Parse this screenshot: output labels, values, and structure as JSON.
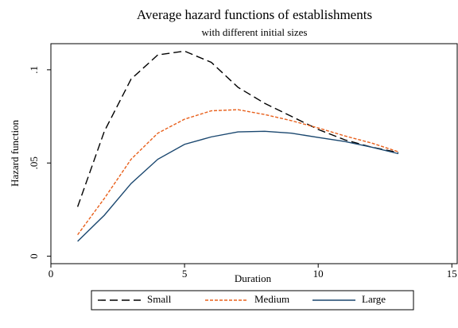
{
  "chart_data": {
    "type": "line",
    "title": "Average hazard functions of establishments",
    "subtitle": "with different initial sizes",
    "x_label": "Duration",
    "y_label": "Hazard function",
    "x": [
      1,
      2,
      3,
      4,
      5,
      6,
      7,
      8,
      9,
      10,
      11,
      12,
      13
    ],
    "series": [
      {
        "name": "Small",
        "color": "#000000",
        "dash": "10,5",
        "values": [
          0.0265,
          0.067,
          0.095,
          0.108,
          0.11,
          0.104,
          0.0906,
          0.082,
          0.075,
          0.068,
          0.0624,
          0.0585,
          0.0556
        ]
      },
      {
        "name": "Medium",
        "color": "#e8601c",
        "dash": "4,2",
        "values": [
          0.0115,
          0.031,
          0.052,
          0.066,
          0.0735,
          0.078,
          0.0786,
          0.076,
          0.0727,
          0.0688,
          0.0645,
          0.0607,
          0.056
        ]
      },
      {
        "name": "Large",
        "color": "#1a476f",
        "dash": "none",
        "values": [
          0.008,
          0.022,
          0.039,
          0.052,
          0.06,
          0.064,
          0.0667,
          0.067,
          0.066,
          0.0637,
          0.0615,
          0.0585,
          0.055
        ]
      }
    ],
    "xlim": [
      0,
      15.2
    ],
    "ylim": [
      -0.004,
      0.114
    ],
    "xticks": [
      0,
      5,
      10,
      15
    ],
    "yticks": [
      0,
      {
        "value": 0.05,
        "label": ".05"
      },
      {
        "value": 0.1,
        "label": ".1"
      }
    ],
    "legend": "bottom"
  }
}
